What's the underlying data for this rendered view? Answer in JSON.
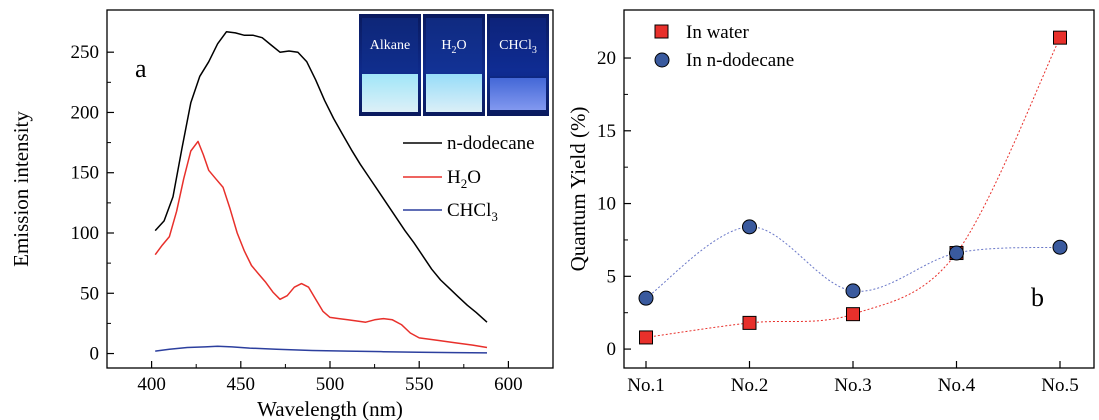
{
  "chart_data": [
    {
      "type": "line",
      "panel_label": "a",
      "xlabel": "Wavelength (nm)",
      "ylabel": "Emission intensity",
      "xlim": [
        375,
        625
      ],
      "ylim": [
        -12,
        285
      ],
      "xticks": [
        400,
        450,
        500,
        550,
        600
      ],
      "yticks": [
        0,
        50,
        100,
        150,
        200,
        250
      ],
      "legend": {
        "position": "right",
        "items": [
          "n-dodecane",
          "H2O",
          "CHCl3"
        ]
      },
      "inset": {
        "labels": [
          "Alkane",
          "H2O",
          "CHCl3"
        ]
      },
      "series": [
        {
          "name": "n-dodecane",
          "color": "#000000",
          "x": [
            402,
            407,
            412,
            417,
            422,
            427,
            432,
            437,
            442,
            447,
            452,
            457,
            462,
            467,
            472,
            477,
            482,
            487,
            492,
            497,
            502,
            507,
            512,
            517,
            522,
            527,
            532,
            537,
            542,
            547,
            552,
            557,
            562,
            567,
            572,
            577,
            582,
            588
          ],
          "y": [
            102,
            110,
            130,
            170,
            208,
            230,
            242,
            257,
            267,
            266,
            264,
            264,
            262,
            256,
            250,
            251,
            250,
            242,
            227,
            210,
            195,
            182,
            169,
            157,
            146,
            135,
            124,
            113,
            102,
            92,
            81,
            70,
            61,
            54,
            47,
            40,
            34,
            26
          ]
        },
        {
          "name": "H2O",
          "color": "#e8302b",
          "x": [
            402,
            406,
            410,
            414,
            418,
            422,
            426,
            429,
            432,
            436,
            440,
            444,
            448,
            452,
            456,
            460,
            464,
            468,
            472,
            476,
            480,
            484,
            488,
            492,
            496,
            500,
            505,
            510,
            515,
            520,
            525,
            530,
            535,
            540,
            545,
            550,
            560,
            570,
            580,
            588
          ],
          "y": [
            82,
            90,
            97,
            118,
            145,
            168,
            176,
            165,
            152,
            145,
            138,
            120,
            100,
            85,
            73,
            66,
            59,
            51,
            45,
            48,
            55,
            58,
            55,
            45,
            35,
            30,
            29,
            28,
            27,
            26,
            28,
            29,
            28,
            24,
            17,
            13,
            11,
            9,
            7,
            5
          ]
        },
        {
          "name": "CHCl3",
          "color": "#2c3f9e",
          "x": [
            402,
            410,
            420,
            430,
            437,
            445,
            455,
            470,
            490,
            510,
            530,
            550,
            570,
            588
          ],
          "y": [
            2,
            3.5,
            5,
            5.5,
            6,
            5.5,
            4.5,
            3.5,
            2.5,
            2,
            1.5,
            1,
            0.8,
            0.5
          ]
        }
      ]
    },
    {
      "type": "scatter",
      "panel_label": "b",
      "xlabel": "",
      "ylabel": "Quantum Yield (%)",
      "ylim": [
        -1.3,
        23.3
      ],
      "categories": [
        "No.1",
        "No.2",
        "No.3",
        "No.4",
        "No.5"
      ],
      "yticks": [
        0,
        5,
        10,
        15,
        20
      ],
      "legend": {
        "position": "top-left",
        "items": [
          "In water",
          "In n-dodecane"
        ]
      },
      "series": [
        {
          "name": "In water",
          "marker": "square",
          "color": "#e8302b",
          "values": [
            0.8,
            1.8,
            2.4,
            6.6,
            21.4
          ]
        },
        {
          "name": "In n-dodecane",
          "marker": "circle",
          "color": "#3a5a9e",
          "values": [
            3.5,
            8.4,
            4.0,
            6.6,
            7.0
          ]
        }
      ]
    }
  ]
}
